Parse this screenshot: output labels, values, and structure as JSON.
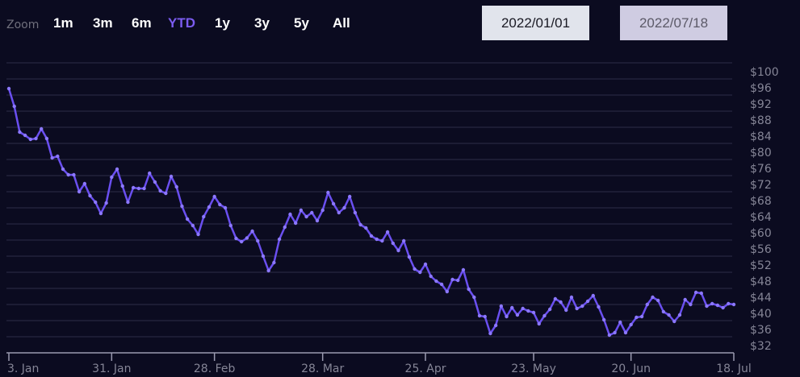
{
  "range_selector": {
    "zoom_label": "Zoom",
    "buttons": [
      "1m",
      "3m",
      "6m",
      "YTD",
      "1y",
      "3y",
      "5y",
      "All"
    ],
    "selected": "YTD",
    "from": "2022/01/01",
    "to": "2022/07/18"
  },
  "colors": {
    "background": "#0b0b20",
    "line": "#6a4ff0",
    "selected_button": "#7b5cf0",
    "grid": "#23233a",
    "axis_text": "#858596"
  },
  "chart_data": {
    "type": "line",
    "title": "",
    "xlabel": "",
    "ylabel": "",
    "ylim": [
      32,
      104
    ],
    "y_tick_interval": 4,
    "y_tick_labels": [
      "$100",
      "$96",
      "$92",
      "$88",
      "$84",
      "$80",
      "$76",
      "$72",
      "$68",
      "$64",
      "$60",
      "$56",
      "$52",
      "$48",
      "$44",
      "$40",
      "$36",
      "$32"
    ],
    "y_ticks": [
      100,
      96,
      92,
      88,
      84,
      80,
      76,
      72,
      68,
      64,
      60,
      56,
      52,
      48,
      44,
      40,
      36,
      32
    ],
    "x_ticks": [
      {
        "date": "2022-01-03",
        "label": "3. Jan"
      },
      {
        "date": "2022-01-31",
        "label": "31. Jan"
      },
      {
        "date": "2022-02-28",
        "label": "28. Feb"
      },
      {
        "date": "2022-03-28",
        "label": "28. Mar"
      },
      {
        "date": "2022-04-25",
        "label": "25. Apr"
      },
      {
        "date": "2022-05-23",
        "label": "23. May"
      },
      {
        "date": "2022-06-20",
        "label": "20. Jun"
      },
      {
        "date": "2022-07-18",
        "label": "18. Jul"
      }
    ],
    "grid": true,
    "markers": true,
    "x": [
      "2022-01-03",
      "2022-01-04",
      "2022-01-05",
      "2022-01-06",
      "2022-01-07",
      "2022-01-10",
      "2022-01-11",
      "2022-01-12",
      "2022-01-13",
      "2022-01-14",
      "2022-01-18",
      "2022-01-19",
      "2022-01-20",
      "2022-01-21",
      "2022-01-24",
      "2022-01-25",
      "2022-01-26",
      "2022-01-27",
      "2022-01-28",
      "2022-01-31",
      "2022-02-01",
      "2022-02-02",
      "2022-02-03",
      "2022-02-04",
      "2022-02-07",
      "2022-02-08",
      "2022-02-09",
      "2022-02-10",
      "2022-02-11",
      "2022-02-14",
      "2022-02-15",
      "2022-02-16",
      "2022-02-17",
      "2022-02-18",
      "2022-02-22",
      "2022-02-23",
      "2022-02-24",
      "2022-02-25",
      "2022-02-28",
      "2022-03-01",
      "2022-03-02",
      "2022-03-03",
      "2022-03-04",
      "2022-03-07",
      "2022-03-08",
      "2022-03-09",
      "2022-03-10",
      "2022-03-11",
      "2022-03-14",
      "2022-03-15",
      "2022-03-16",
      "2022-03-17",
      "2022-03-18",
      "2022-03-21",
      "2022-03-22",
      "2022-03-23",
      "2022-03-24",
      "2022-03-25",
      "2022-03-28",
      "2022-03-29",
      "2022-03-30",
      "2022-03-31",
      "2022-04-01",
      "2022-04-04",
      "2022-04-05",
      "2022-04-06",
      "2022-04-07",
      "2022-04-08",
      "2022-04-11",
      "2022-04-12",
      "2022-04-13",
      "2022-04-14",
      "2022-04-18",
      "2022-04-19",
      "2022-04-20",
      "2022-04-21",
      "2022-04-22",
      "2022-04-25",
      "2022-04-26",
      "2022-04-27",
      "2022-04-28",
      "2022-04-29",
      "2022-05-02",
      "2022-05-03",
      "2022-05-04",
      "2022-05-05",
      "2022-05-06",
      "2022-05-09",
      "2022-05-10",
      "2022-05-11",
      "2022-05-12",
      "2022-05-13",
      "2022-05-16",
      "2022-05-17",
      "2022-05-18",
      "2022-05-19",
      "2022-05-20",
      "2022-05-23",
      "2022-05-24",
      "2022-05-25",
      "2022-05-26",
      "2022-05-27",
      "2022-05-31",
      "2022-06-01",
      "2022-06-02",
      "2022-06-03",
      "2022-06-06",
      "2022-06-07",
      "2022-06-08",
      "2022-06-09",
      "2022-06-10",
      "2022-06-13",
      "2022-06-14",
      "2022-06-15",
      "2022-06-16",
      "2022-06-17",
      "2022-06-21",
      "2022-06-22",
      "2022-06-23",
      "2022-06-24",
      "2022-06-27",
      "2022-06-28",
      "2022-06-29",
      "2022-06-30",
      "2022-07-01",
      "2022-07-05",
      "2022-07-06",
      "2022-07-07",
      "2022-07-08",
      "2022-07-11",
      "2022-07-12",
      "2022-07-13",
      "2022-07-14",
      "2022-07-15",
      "2022-07-18"
    ],
    "values": [
      97.6,
      93.2,
      86.8,
      86,
      85,
      85.2,
      87.6,
      85.2,
      80.4,
      80.8,
      77.6,
      76.2,
      76.2,
      72,
      74,
      71,
      69.4,
      66.6,
      69.2,
      75.6,
      77.6,
      73.4,
      69.4,
      73,
      72.8,
      72.8,
      76.6,
      74.4,
      72.2,
      71.6,
      75.8,
      73.2,
      68.4,
      65.2,
      63.6,
      61.4,
      65.8,
      68.2,
      70.8,
      68.8,
      68,
      63.6,
      60.4,
      59.6,
      60.5,
      62.2,
      59.8,
      56,
      52.4,
      54.4,
      60.2,
      63.2,
      66.4,
      64.2,
      67.4,
      65.8,
      66.8,
      64.8,
      67.4,
      71.8,
      69,
      66.8,
      68,
      70.8,
      66.8,
      63.8,
      63,
      61,
      60.2,
      59.8,
      62,
      59.2,
      57.4,
      59.8,
      55.8,
      52.8,
      52,
      54,
      51,
      49.8,
      49,
      47.2,
      50.2,
      50,
      52.6,
      47.8,
      45.8,
      41.2,
      41,
      36.8,
      38.8,
      43.6,
      41,
      43.2,
      41.4,
      43,
      42.4,
      42,
      39.2,
      41.2,
      42.8,
      45.4,
      44.6,
      42.6,
      45.8,
      43,
      43.6,
      44.8,
      46.2,
      43.4,
      40.2,
      36.4,
      37,
      39.6,
      37,
      39,
      40.8,
      41,
      44,
      45.8,
      45,
      42.2,
      41.4,
      39.8,
      41.4,
      45.2,
      44,
      47,
      46.8,
      43.6,
      44.2,
      43.8,
      43.2,
      44.2,
      44
    ]
  }
}
